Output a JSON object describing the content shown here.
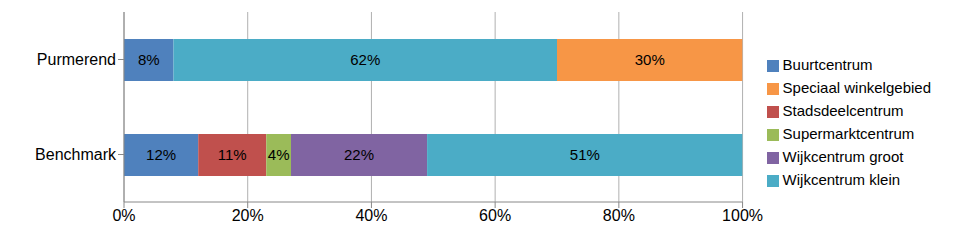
{
  "chart_data": {
    "type": "bar",
    "orientation": "horizontal",
    "stacked": true,
    "grid": true,
    "legend": "right",
    "data_labels": true,
    "categories": [
      "Purmerend",
      "Benchmark"
    ],
    "xlim": [
      0,
      100
    ],
    "xticks": [
      {
        "value": 0,
        "label": "0%"
      },
      {
        "value": 20,
        "label": "20%"
      },
      {
        "value": 40,
        "label": "40%"
      },
      {
        "value": 60,
        "label": "60%"
      },
      {
        "value": 80,
        "label": "80%"
      },
      {
        "value": 100,
        "label": "100%"
      }
    ],
    "series": [
      {
        "name": "Buurtcentrum",
        "color": "#4f81bd",
        "values": [
          8,
          12
        ],
        "value_labels": [
          "8%",
          "12%"
        ]
      },
      {
        "name": "Stadsdeelcentrum",
        "color": "#c0504d",
        "values": [
          null,
          11
        ],
        "value_labels": [
          null,
          "11%"
        ]
      },
      {
        "name": "Supermarktcentrum",
        "color": "#9bbb59",
        "values": [
          null,
          4
        ],
        "value_labels": [
          null,
          "4%"
        ]
      },
      {
        "name": "Wijkcentrum groot",
        "color": "#8064a2",
        "values": [
          null,
          22
        ],
        "value_labels": [
          null,
          "22%"
        ]
      },
      {
        "name": "Wijkcentrum klein",
        "color": "#4bacc6",
        "values": [
          62,
          51
        ],
        "value_labels": [
          "62%",
          "51%"
        ]
      },
      {
        "name": "Speciaal winkelgebied",
        "color": "#f79646",
        "values": [
          30,
          null
        ],
        "value_labels": [
          "30%",
          null
        ]
      }
    ]
  }
}
